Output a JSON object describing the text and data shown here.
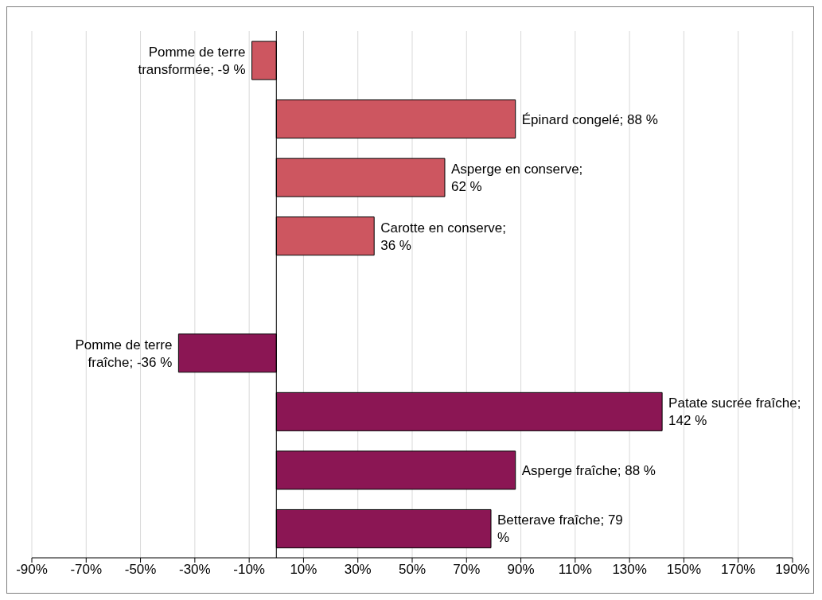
{
  "chart_data": {
    "type": "bar",
    "orientation": "horizontal",
    "categories": [
      null,
      null,
      null,
      null,
      null,
      null,
      null,
      null,
      null
    ],
    "values": [
      -9,
      88,
      62,
      36,
      null,
      -36,
      142,
      88,
      79
    ],
    "colors": [
      "#cd5660",
      "#cd5660",
      "#cd5660",
      "#cd5660",
      "#cd5660",
      "#8b1654",
      "#8b1654",
      "#8b1654",
      "#8b1654"
    ],
    "value_labels": [
      "Pomme de terre transformée; -9 %",
      "Épinard congelé; 88 %",
      "Asperge en conserve; 62 %",
      "Carotte en conserve; 36 %",
      null,
      "Pomme de terre fraîche; -36 %",
      "Patate sucrée fraîche; 142 %",
      "Asperge fraîche;  88 %",
      "Betterave fraîche;  79 %"
    ],
    "xlim": [
      -90,
      190
    ],
    "xticks": [
      {
        "value": -90,
        "label": "-90%"
      },
      {
        "value": -70,
        "label": "-70%"
      },
      {
        "value": -50,
        "label": "-50%"
      },
      {
        "value": -30,
        "label": "-30%"
      },
      {
        "value": -10,
        "label": "-10%"
      },
      {
        "value": 10,
        "label": "10%"
      },
      {
        "value": 30,
        "label": "30%"
      },
      {
        "value": 50,
        "label": "50%"
      },
      {
        "value": 70,
        "label": "70%"
      },
      {
        "value": 90,
        "label": "90%"
      },
      {
        "value": 110,
        "label": "110%"
      },
      {
        "value": 130,
        "label": "130%"
      },
      {
        "value": 150,
        "label": "150%"
      },
      {
        "value": 170,
        "label": "170%"
      },
      {
        "value": 190,
        "label": "190%"
      }
    ],
    "grid": "x",
    "tick_labels": "x"
  }
}
